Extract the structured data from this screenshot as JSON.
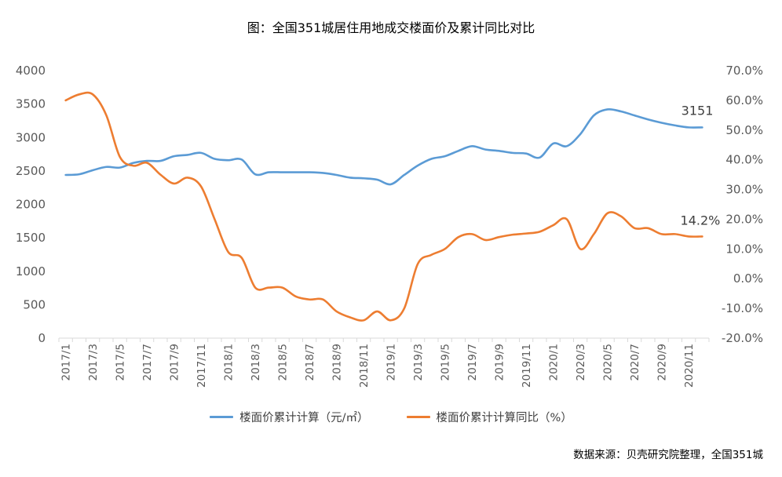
{
  "title": "图：全国351城居住用地成交楼面价及累计同比对比",
  "source": "数据来源：贝壳研究院整理，全国351城",
  "colors": {
    "price": "#5b9bd5",
    "yoy": "#ed7d31",
    "axis": "#d9d9d9",
    "text": "#595959"
  },
  "chart_data": {
    "type": "line",
    "x": [
      "2017/1",
      "2017/2",
      "2017/3",
      "2017/4",
      "2017/5",
      "2017/6",
      "2017/7",
      "2017/8",
      "2017/9",
      "2017/10",
      "2017/11",
      "2017/12",
      "2018/1",
      "2018/2",
      "2018/3",
      "2018/4",
      "2018/5",
      "2018/6",
      "2018/7",
      "2018/8",
      "2018/9",
      "2018/10",
      "2018/11",
      "2018/12",
      "2019/1",
      "2019/2",
      "2019/3",
      "2019/4",
      "2019/5",
      "2019/6",
      "2019/7",
      "2019/8",
      "2019/9",
      "2019/10",
      "2019/11",
      "2019/12",
      "2020/1",
      "2020/2",
      "2020/3",
      "2020/4",
      "2020/5",
      "2020/6",
      "2020/7",
      "2020/8",
      "2020/9",
      "2020/10",
      "2020/11",
      "2020/12"
    ],
    "x_tick_labels": [
      "2017/1",
      "2017/3",
      "2017/5",
      "2017/7",
      "2017/9",
      "2017/11",
      "2018/1",
      "2018/3",
      "2018/5",
      "2018/7",
      "2018/9",
      "2018/11",
      "2019/1",
      "2019/3",
      "2019/5",
      "2019/7",
      "2019/9",
      "2019/11",
      "2020/1",
      "2020/3",
      "2020/5",
      "2020/7",
      "2020/9",
      "2020/11"
    ],
    "y_left": {
      "min": 0,
      "max": 4000,
      "ticks": [
        "0",
        "500",
        "1000",
        "1500",
        "2000",
        "2500",
        "3000",
        "3500",
        "4000"
      ]
    },
    "y_right": {
      "min": -20,
      "max": 70,
      "ticks": [
        "-20.0%",
        "-10.0%",
        "0.0%",
        "10.0%",
        "20.0%",
        "30.0%",
        "40.0%",
        "50.0%",
        "60.0%",
        "70.0%"
      ]
    },
    "series": [
      {
        "name": "楼面价累计计算（元/㎡）",
        "axis": "left",
        "values": [
          2440,
          2450,
          2510,
          2560,
          2550,
          2620,
          2650,
          2650,
          2720,
          2740,
          2770,
          2680,
          2660,
          2670,
          2450,
          2480,
          2480,
          2480,
          2480,
          2470,
          2440,
          2400,
          2390,
          2370,
          2300,
          2440,
          2580,
          2680,
          2720,
          2800,
          2870,
          2820,
          2800,
          2770,
          2760,
          2700,
          2910,
          2870,
          3050,
          3330,
          3420,
          3390,
          3330,
          3270,
          3220,
          3180,
          3151,
          3151
        ]
      },
      {
        "name": "楼面价累计计算同比（%）",
        "axis": "right",
        "values": [
          60,
          62,
          62,
          55,
          41,
          38,
          39,
          35,
          32,
          34,
          31,
          20,
          9,
          7,
          -3,
          -3,
          -3,
          -6,
          -7,
          -7,
          -11,
          -13,
          -14,
          -11,
          -14,
          -10,
          5,
          8,
          10,
          14,
          15,
          13,
          14,
          14.8,
          15.2,
          15.8,
          18,
          20,
          10,
          15,
          22,
          21,
          17,
          17,
          15,
          15,
          14.2,
          14.2
        ]
      }
    ],
    "annotations": [
      {
        "text": "3151"
      },
      {
        "text": "14.2%"
      }
    ],
    "legend_position": "bottom",
    "grid": false
  }
}
